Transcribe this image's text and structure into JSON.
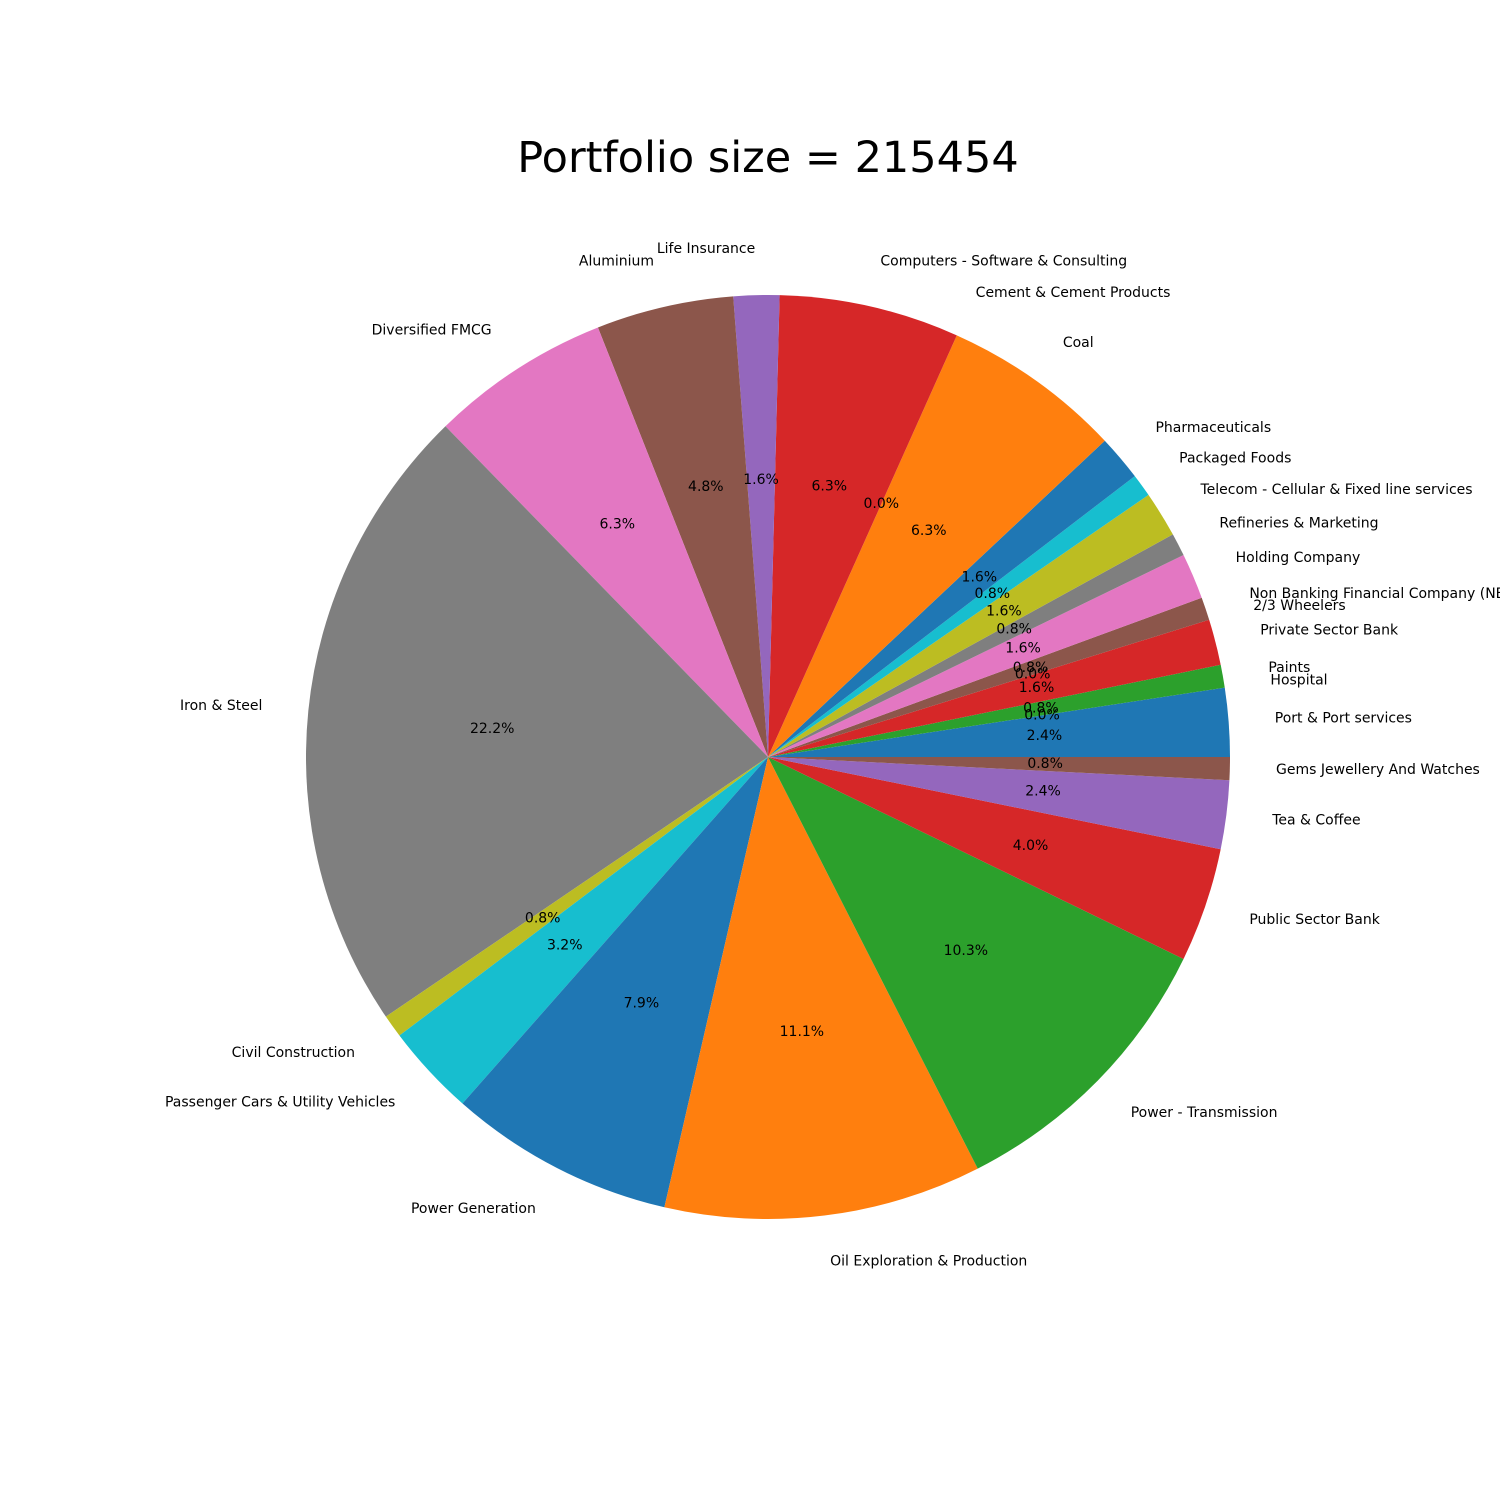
{
  "chart_data": {
    "type": "pie",
    "title": "Portfolio size = 215454",
    "start_angle_deg": 0,
    "direction": "counterclockwise",
    "slices": [
      {
        "label": "Port & Port services",
        "value": 2.4,
        "pct_label": "2.4%",
        "color": "#1f77b4"
      },
      {
        "label": "Hospital",
        "value": 0.0,
        "pct_label": "0.0%",
        "color": "#ff7f0e"
      },
      {
        "label": "Paints",
        "value": 0.8,
        "pct_label": "0.8%",
        "color": "#2ca02c"
      },
      {
        "label": "Private Sector Bank",
        "value": 1.6,
        "pct_label": "1.6%",
        "color": "#d62728"
      },
      {
        "label": "2/3 Wheelers",
        "value": 0.0,
        "pct_label": "0.0%",
        "color": "#9467bd"
      },
      {
        "label": "Non Banking Financial Company (NB",
        "value": 0.8,
        "pct_label": "0.8%",
        "color": "#8c564b"
      },
      {
        "label": "Holding Company",
        "value": 1.6,
        "pct_label": "1.6%",
        "color": "#e377c2"
      },
      {
        "label": "Refineries & Marketing",
        "value": 0.8,
        "pct_label": "0.8%",
        "color": "#7f7f7f"
      },
      {
        "label": "Telecom - Cellular & Fixed line services",
        "value": 1.6,
        "pct_label": "1.6%",
        "color": "#bcbd22"
      },
      {
        "label": "Packaged Foods",
        "value": 0.8,
        "pct_label": "0.8%",
        "color": "#17becf"
      },
      {
        "label": "Pharmaceuticals",
        "value": 1.6,
        "pct_label": "1.6%",
        "color": "#1f77b4"
      },
      {
        "label": "Coal",
        "value": 6.3,
        "pct_label": "6.3%",
        "color": "#ff7f0e"
      },
      {
        "label": "Cement & Cement Products",
        "value": 0.0,
        "pct_label": "0.0%",
        "color": "#2ca02c"
      },
      {
        "label": "Computers - Software & Consulting",
        "value": 6.3,
        "pct_label": "6.3%",
        "color": "#d62728"
      },
      {
        "label": "Life Insurance",
        "value": 1.6,
        "pct_label": "1.6%",
        "color": "#9467bd"
      },
      {
        "label": "Aluminium",
        "value": 4.8,
        "pct_label": "4.8%",
        "color": "#8c564b"
      },
      {
        "label": "Diversified FMCG",
        "value": 6.3,
        "pct_label": "6.3%",
        "color": "#e377c2"
      },
      {
        "label": "Iron & Steel",
        "value": 22.2,
        "pct_label": "22.2%",
        "color": "#7f7f7f"
      },
      {
        "label": "Civil Construction",
        "value": 0.8,
        "pct_label": "0.8%",
        "color": "#bcbd22"
      },
      {
        "label": "Passenger Cars & Utility Vehicles",
        "value": 3.2,
        "pct_label": "3.2%",
        "color": "#17becf"
      },
      {
        "label": "Power Generation",
        "value": 7.9,
        "pct_label": "7.9%",
        "color": "#1f77b4"
      },
      {
        "label": "Oil Exploration & Production",
        "value": 11.1,
        "pct_label": "11.1%",
        "color": "#ff7f0e"
      },
      {
        "label": "Power - Transmission",
        "value": 10.3,
        "pct_label": "10.3%",
        "color": "#2ca02c"
      },
      {
        "label": "Public Sector Bank",
        "value": 4.0,
        "pct_label": "4.0%",
        "color": "#d62728"
      },
      {
        "label": "Tea & Coffee",
        "value": 2.4,
        "pct_label": "2.4%",
        "color": "#9467bd"
      },
      {
        "label": "Gems Jewellery And Watches",
        "value": 0.8,
        "pct_label": "0.8%",
        "color": "#8c564b"
      }
    ]
  }
}
